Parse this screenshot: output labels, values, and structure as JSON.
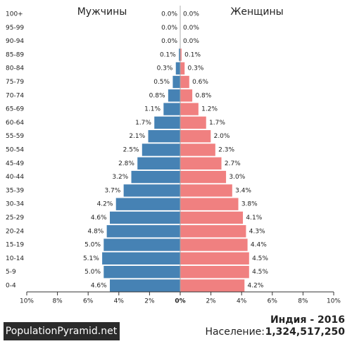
{
  "chart_data": {
    "type": "population-pyramid",
    "title": "Индия - 2016",
    "population_label": "Население:",
    "population": "1,324,517,250",
    "brand": "PopulationPyramid.net",
    "categories": [
      "100+",
      "95-99",
      "90-94",
      "85-89",
      "80-84",
      "75-79",
      "70-74",
      "65-69",
      "60-64",
      "55-59",
      "50-54",
      "45-49",
      "40-44",
      "35-39",
      "30-34",
      "25-29",
      "20-24",
      "15-19",
      "10-14",
      "5-9",
      "0-4"
    ],
    "series": [
      {
        "name": "Мужчины",
        "color": "#4682b4",
        "values": [
          0.0,
          0.0,
          0.0,
          0.1,
          0.3,
          0.5,
          0.8,
          1.1,
          1.7,
          2.1,
          2.5,
          2.8,
          3.2,
          3.7,
          4.2,
          4.6,
          4.8,
          5.0,
          5.1,
          5.0,
          4.6
        ],
        "value_labels": [
          "0.0%",
          "0.0%",
          "0.0%",
          "0.1%",
          "0.3%",
          "0.5%",
          "0.8%",
          "1.1%",
          "1.7%",
          "2.1%",
          "2.5%",
          "2.8%",
          "3.2%",
          "3.7%",
          "4.2%",
          "4.6%",
          "4.8%",
          "5.0%",
          "5.1%",
          "5.0%",
          "4.6%"
        ]
      },
      {
        "name": "Женщины",
        "color": "#f08080",
        "values": [
          0.0,
          0.0,
          0.0,
          0.1,
          0.3,
          0.6,
          0.8,
          1.2,
          1.7,
          2.0,
          2.3,
          2.7,
          3.0,
          3.4,
          3.8,
          4.1,
          4.3,
          4.4,
          4.5,
          4.5,
          4.2
        ],
        "value_labels": [
          "0.0%",
          "0.0%",
          "0.0%",
          "0.1%",
          "0.3%",
          "0.6%",
          "0.8%",
          "1.2%",
          "1.7%",
          "2.0%",
          "2.3%",
          "2.7%",
          "3.0%",
          "3.4%",
          "3.8%",
          "4.1%",
          "4.3%",
          "4.4%",
          "4.5%",
          "4.5%",
          "4.2%"
        ]
      }
    ],
    "xlim": [
      -10,
      10
    ],
    "xticks": [
      {
        "value": -10,
        "label": "10%"
      },
      {
        "value": -8,
        "label": "8%"
      },
      {
        "value": -6,
        "label": "6%"
      },
      {
        "value": -4,
        "label": "4%"
      },
      {
        "value": -2,
        "label": "2%"
      },
      {
        "value": 0,
        "label": "0%"
      },
      {
        "value": 2,
        "label": "2%"
      },
      {
        "value": 4,
        "label": "4%"
      },
      {
        "value": 6,
        "label": "6%"
      },
      {
        "value": 8,
        "label": "8%"
      },
      {
        "value": 10,
        "label": "10%"
      }
    ]
  }
}
